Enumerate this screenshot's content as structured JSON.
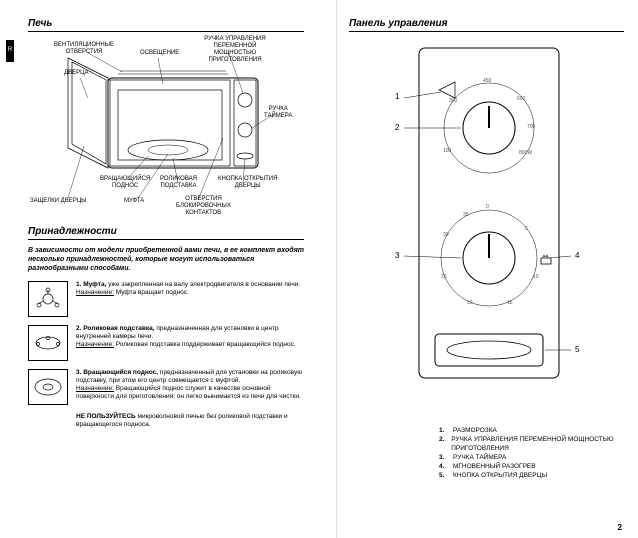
{
  "left": {
    "title1": "Печь",
    "title2": "Принадлежности",
    "tabLetter": "R",
    "callouts": {
      "vent": "ВЕНТИЛЯЦИОННЫЕ\nОТВЕРСТИЯ",
      "door": "ДВЕРЦА",
      "light": "ОСВЕЩЕНИЕ",
      "power": "РУЧКА УПРАВЛЕНИЯ\nПЕРЕМЕННОЙ\nМОЩНОСТЬЮ\nПРИГОТОВЛЕНИЯ",
      "timer": "РУЧКА\nТАЙМЕРА",
      "tray": "ВРАЩАЮЩИЙСЯ\nПОДНОС",
      "roller": "РОЛИКОВАЯ\nПОДСТАВКА",
      "openbtn": "КНОПКА ОТКРЫТИЯ\nДВЕРЦЫ",
      "latches": "ЗАЩЕЛКИ ДВЕРЦЫ",
      "coupler": "МУФТА",
      "lockholes": "ОТВЕРСТИЯ\nБЛОКИРОВОЧНЫХ\nКОНТАКТОВ"
    },
    "accIntro": "В зависимости от модели приобретенной вами печи, в ее комплект входят несколько принадлежностей, которые могут использоваться разнообразными способами.",
    "acc": [
      {
        "n": "1.",
        "title": "Муфта,",
        "body": "уже закрепленная на валу электродвигателя в основании печи.",
        "purpose": "Муфта вращает поднос."
      },
      {
        "n": "2.",
        "title": "Роликовая подставка,",
        "body": "предназначенная для установки в центр внутренней камеры печи.",
        "purpose": "Роликовая подставка поддерживает вращающийся поднос."
      },
      {
        "n": "3.",
        "title": "Вращающийся поднос,",
        "body": "предназначенный для установки на роликовую подставку, при этом его центр совмещается с муфтой.",
        "purpose": "Вращающийся поднос служит в качестве основной поверхности для приготовления; он легко вынимается из печи для чистки."
      }
    ],
    "purposeLabel": "Назначение:",
    "warn1": "НЕ ПОЛЬЗУЙТЕСЬ",
    "warn2": " микроволновой печью без роликовой подставки и вращающегося подноса."
  },
  "right": {
    "title": "Панель управления",
    "powerTicks": [
      "100",
      "300",
      "450",
      "600",
      "700",
      "800W"
    ],
    "timerTicks": [
      "0",
      "5",
      "10",
      "15",
      "20",
      "25",
      "30",
      "35"
    ],
    "numbers": [
      "1",
      "2",
      "3",
      "4",
      "5"
    ],
    "legend": [
      "РАЗМОРОЗКА",
      "РУЧКА УПРАВЛЕНИЯ ПЕРЕМЕННОЙ МОЩНОСТЬЮ ПРИГОТОВЛЕНИЯ",
      "РУЧКА ТАЙМЕРА",
      "МГНОВЕННЫЙ РАЗОГРЕВ",
      "КНОПКА ОТКРЫТИЯ ДВЕРЦЫ"
    ],
    "pageNum": "2"
  }
}
